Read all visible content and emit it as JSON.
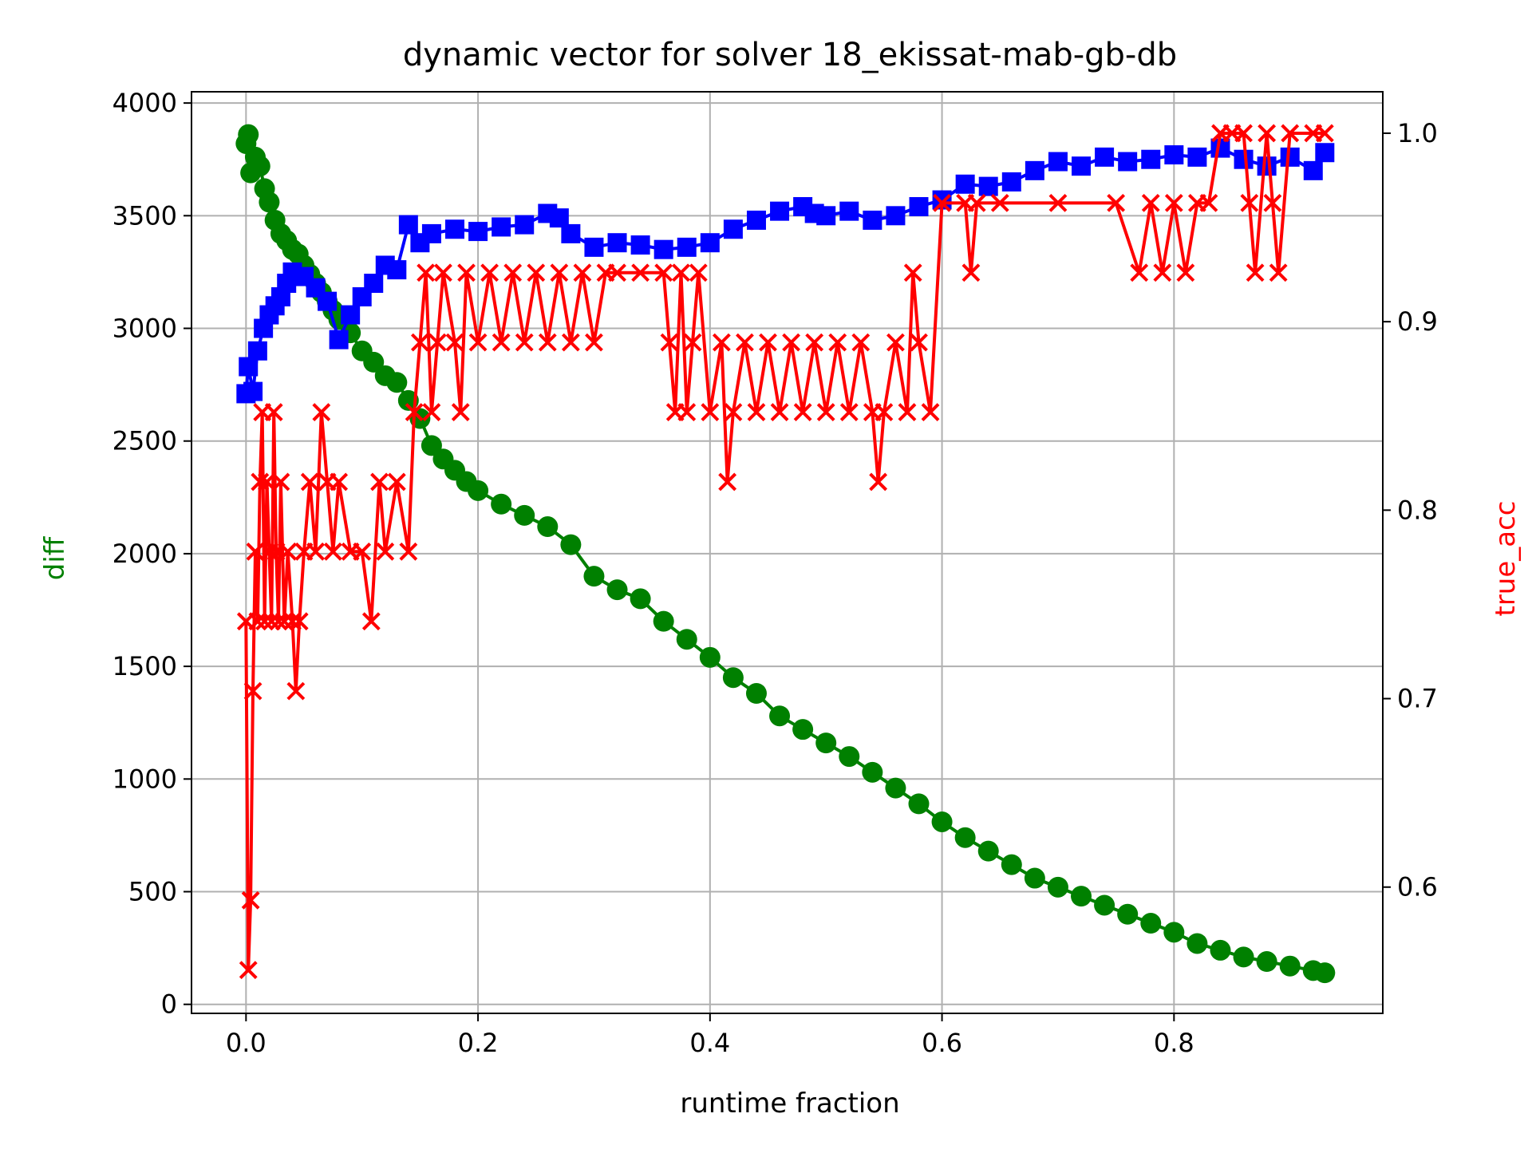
{
  "chart_data": {
    "type": "line",
    "title": "dynamic vector for solver 18_ekissat-mab-gb-db",
    "xlabel": "runtime fraction",
    "ylabel": "diff",
    "ylabel_right": "true_acc",
    "xlim": [
      -0.047,
      0.98
    ],
    "ylim": [
      -40,
      4050
    ],
    "ylim_right": [
      0.533,
      1.022
    ],
    "xticks": [
      "0.0",
      "0.2",
      "0.4",
      "0.6",
      "0.8"
    ],
    "yticks": [
      "0",
      "500",
      "1000",
      "1500",
      "2000",
      "2500",
      "3000",
      "3500",
      "4000"
    ],
    "yticks_right": [
      "0.6",
      "0.7",
      "0.8",
      "0.9",
      "1.0"
    ],
    "grid": true,
    "colors": {
      "diff": "#008000",
      "blue_series": "#0000ff",
      "true_acc": "#ff0000",
      "grid": "#b0b0b0"
    },
    "series": [
      {
        "axis": "left",
        "marker": "circle",
        "color": "#008000",
        "x": [
          0.0,
          0.002,
          0.004,
          0.008,
          0.012,
          0.016,
          0.02,
          0.025,
          0.03,
          0.035,
          0.04,
          0.045,
          0.05,
          0.055,
          0.06,
          0.065,
          0.07,
          0.075,
          0.08,
          0.09,
          0.1,
          0.11,
          0.12,
          0.13,
          0.14,
          0.15,
          0.16,
          0.17,
          0.18,
          0.19,
          0.2,
          0.22,
          0.24,
          0.26,
          0.28,
          0.3,
          0.32,
          0.34,
          0.36,
          0.38,
          0.4,
          0.42,
          0.44,
          0.46,
          0.48,
          0.5,
          0.52,
          0.54,
          0.56,
          0.58,
          0.6,
          0.62,
          0.64,
          0.66,
          0.68,
          0.7,
          0.72,
          0.74,
          0.76,
          0.78,
          0.8,
          0.82,
          0.84,
          0.86,
          0.88,
          0.9,
          0.92,
          0.93
        ],
        "y": [
          3820,
          3860,
          3690,
          3760,
          3720,
          3620,
          3560,
          3480,
          3420,
          3390,
          3350,
          3330,
          3280,
          3240,
          3200,
          3160,
          3120,
          3080,
          3040,
          2980,
          2900,
          2850,
          2790,
          2760,
          2680,
          2600,
          2480,
          2420,
          2370,
          2320,
          2280,
          2220,
          2170,
          2120,
          2040,
          1900,
          1840,
          1800,
          1700,
          1620,
          1540,
          1450,
          1380,
          1280,
          1220,
          1160,
          1100,
          1030,
          960,
          890,
          810,
          740,
          680,
          620,
          560,
          520,
          480,
          440,
          400,
          360,
          320,
          270,
          240,
          210,
          190,
          170,
          150,
          140
        ]
      },
      {
        "axis": "left",
        "marker": "square",
        "color": "#0000ff",
        "x": [
          0.0,
          0.002,
          0.006,
          0.01,
          0.015,
          0.02,
          0.025,
          0.03,
          0.035,
          0.04,
          0.05,
          0.06,
          0.07,
          0.08,
          0.09,
          0.1,
          0.11,
          0.12,
          0.13,
          0.14,
          0.15,
          0.16,
          0.18,
          0.2,
          0.22,
          0.24,
          0.26,
          0.27,
          0.28,
          0.3,
          0.32,
          0.34,
          0.36,
          0.38,
          0.4,
          0.42,
          0.44,
          0.46,
          0.48,
          0.49,
          0.5,
          0.52,
          0.54,
          0.56,
          0.58,
          0.6,
          0.62,
          0.64,
          0.66,
          0.68,
          0.7,
          0.72,
          0.74,
          0.76,
          0.78,
          0.8,
          0.82,
          0.84,
          0.86,
          0.88,
          0.9,
          0.92,
          0.93
        ],
        "y": [
          2710,
          2830,
          2720,
          2900,
          3000,
          3060,
          3100,
          3140,
          3200,
          3250,
          3230,
          3180,
          3120,
          2950,
          3060,
          3140,
          3200,
          3280,
          3260,
          3460,
          3380,
          3420,
          3440,
          3430,
          3450,
          3460,
          3510,
          3490,
          3420,
          3360,
          3380,
          3370,
          3350,
          3360,
          3380,
          3440,
          3480,
          3520,
          3540,
          3510,
          3500,
          3520,
          3480,
          3500,
          3540,
          3570,
          3640,
          3630,
          3650,
          3700,
          3740,
          3720,
          3760,
          3740,
          3750,
          3770,
          3760,
          3800,
          3750,
          3720,
          3760,
          3700,
          3780
        ]
      },
      {
        "axis": "right",
        "marker": "x",
        "color": "#ff0000",
        "x": [
          0.0,
          0.002,
          0.004,
          0.006,
          0.008,
          0.01,
          0.012,
          0.014,
          0.016,
          0.018,
          0.02,
          0.022,
          0.024,
          0.026,
          0.028,
          0.03,
          0.033,
          0.036,
          0.04,
          0.043,
          0.046,
          0.05,
          0.055,
          0.06,
          0.065,
          0.07,
          0.075,
          0.08,
          0.09,
          0.1,
          0.108,
          0.115,
          0.12,
          0.13,
          0.14,
          0.145,
          0.15,
          0.155,
          0.16,
          0.165,
          0.17,
          0.18,
          0.185,
          0.19,
          0.2,
          0.21,
          0.22,
          0.23,
          0.24,
          0.25,
          0.26,
          0.27,
          0.28,
          0.29,
          0.3,
          0.31,
          0.32,
          0.34,
          0.36,
          0.365,
          0.37,
          0.375,
          0.38,
          0.385,
          0.39,
          0.4,
          0.41,
          0.415,
          0.42,
          0.43,
          0.44,
          0.45,
          0.46,
          0.47,
          0.48,
          0.49,
          0.5,
          0.51,
          0.52,
          0.53,
          0.54,
          0.545,
          0.55,
          0.56,
          0.57,
          0.575,
          0.58,
          0.59,
          0.6,
          0.62,
          0.625,
          0.63,
          0.65,
          0.7,
          0.75,
          0.77,
          0.78,
          0.79,
          0.8,
          0.81,
          0.82,
          0.83,
          0.84,
          0.85,
          0.86,
          0.865,
          0.87,
          0.88,
          0.885,
          0.89,
          0.9,
          0.92,
          0.93
        ],
        "y": [
          0.741,
          0.556,
          0.593,
          0.704,
          0.778,
          0.741,
          0.815,
          0.852,
          0.741,
          0.815,
          0.778,
          0.741,
          0.852,
          0.778,
          0.741,
          0.815,
          0.741,
          0.778,
          0.741,
          0.704,
          0.741,
          0.778,
          0.815,
          0.778,
          0.852,
          0.815,
          0.778,
          0.815,
          0.778,
          0.778,
          0.741,
          0.815,
          0.778,
          0.815,
          0.778,
          0.852,
          0.889,
          0.926,
          0.852,
          0.889,
          0.926,
          0.889,
          0.852,
          0.926,
          0.889,
          0.926,
          0.889,
          0.926,
          0.889,
          0.926,
          0.889,
          0.926,
          0.889,
          0.926,
          0.889,
          0.926,
          0.926,
          0.926,
          0.926,
          0.889,
          0.852,
          0.926,
          0.852,
          0.889,
          0.926,
          0.852,
          0.889,
          0.815,
          0.852,
          0.889,
          0.852,
          0.889,
          0.852,
          0.889,
          0.852,
          0.889,
          0.852,
          0.889,
          0.852,
          0.889,
          0.852,
          0.815,
          0.852,
          0.889,
          0.852,
          0.926,
          0.889,
          0.852,
          0.963,
          0.963,
          0.926,
          0.963,
          0.963,
          0.963,
          0.963,
          0.926,
          0.963,
          0.926,
          0.963,
          0.926,
          0.963,
          0.963,
          1.0,
          1.0,
          1.0,
          0.963,
          0.926,
          1.0,
          0.963,
          0.926,
          1.0,
          1.0,
          1.0
        ]
      }
    ]
  }
}
